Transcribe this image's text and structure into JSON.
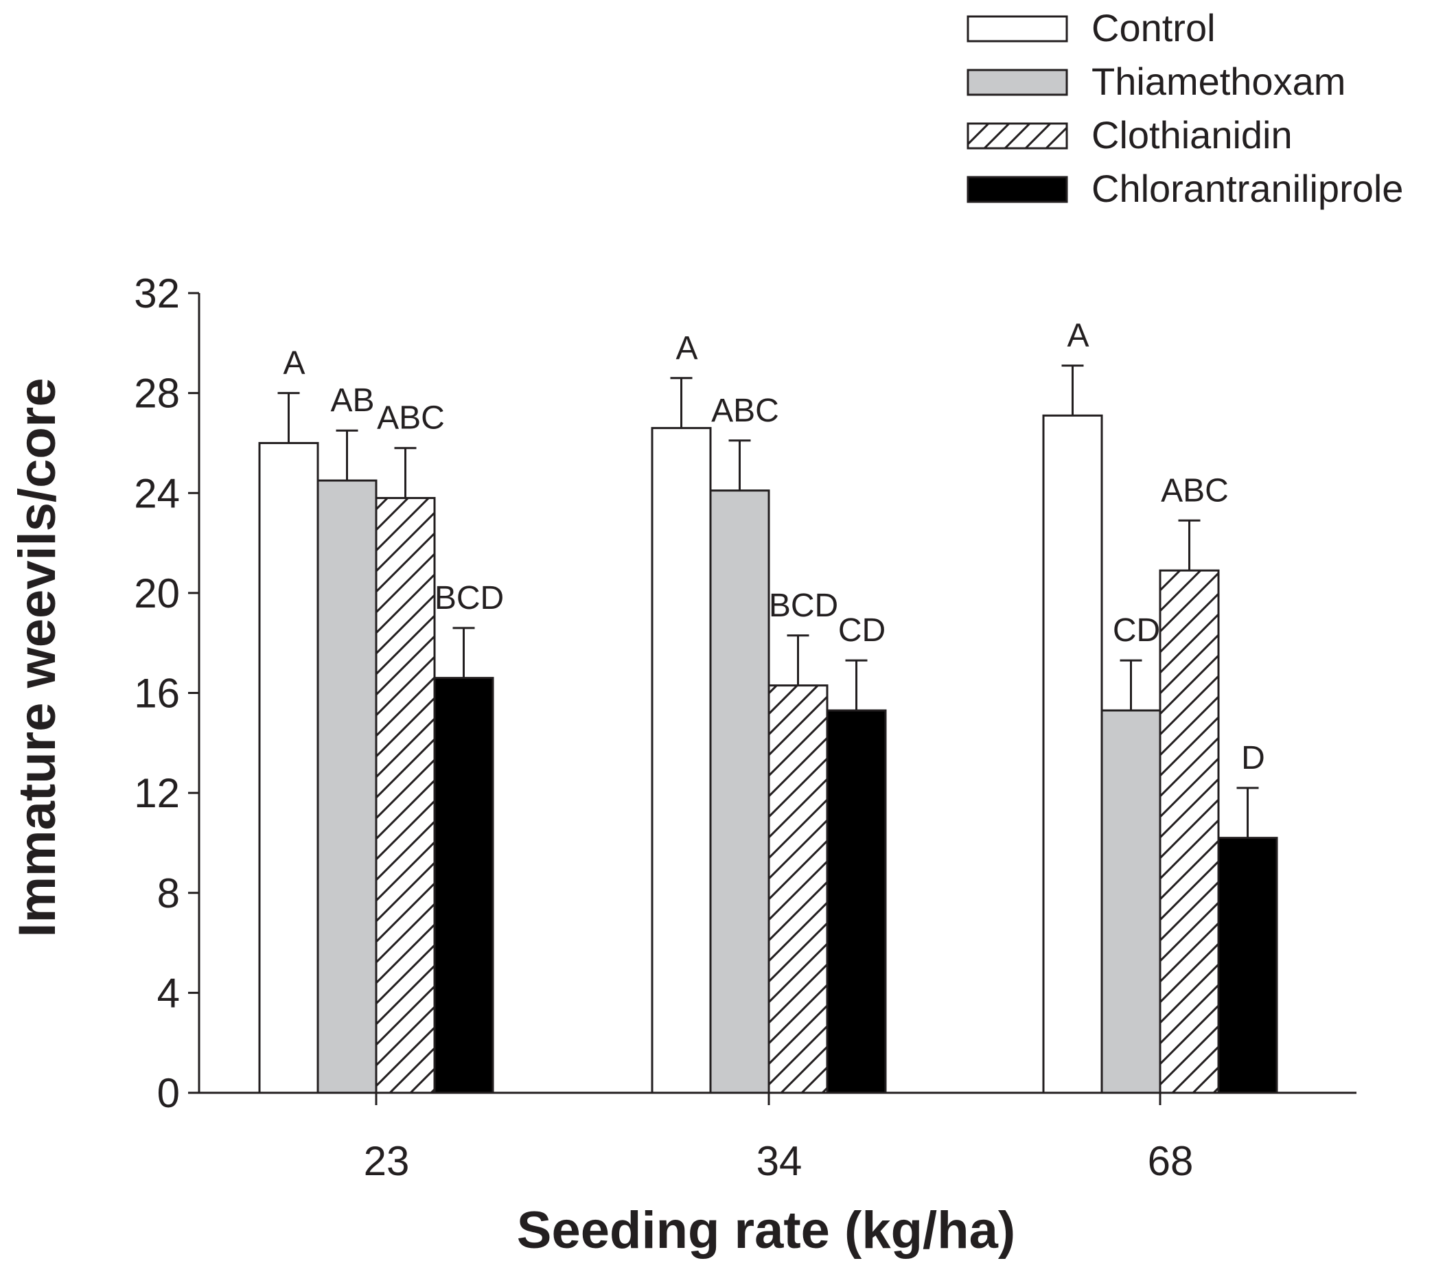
{
  "chart_data": {
    "type": "bar",
    "title": "",
    "xlabel": "Seeding rate (kg/ha)",
    "ylabel": "Immature weevils/core",
    "ylim": [
      0,
      32
    ],
    "yticks": [
      0,
      4,
      8,
      12,
      16,
      20,
      24,
      28,
      32
    ],
    "categories": [
      "23",
      "34",
      "68"
    ],
    "grid": false,
    "legend_position": "top-right",
    "series": [
      {
        "name": "Control",
        "fill": "white",
        "color": "#ffffff",
        "values": [
          26.0,
          26.6,
          27.1
        ],
        "errors": [
          2.0,
          2.0,
          2.0
        ],
        "labels": [
          "A",
          "A",
          "A"
        ]
      },
      {
        "name": "Thiamethoxam",
        "fill": "gray",
        "color": "#c8c9cb",
        "values": [
          24.5,
          24.1,
          15.3
        ],
        "errors": [
          2.0,
          2.0,
          2.0
        ],
        "labels": [
          "AB",
          "ABC",
          "CD"
        ]
      },
      {
        "name": "Clothianidin",
        "fill": "hatch",
        "color": "#ffffff",
        "values": [
          23.8,
          16.3,
          20.9
        ],
        "errors": [
          2.0,
          2.0,
          2.0
        ],
        "labels": [
          "ABC",
          "BCD",
          "ABC"
        ]
      },
      {
        "name": "Chlorantraniliprole",
        "fill": "black",
        "color": "#000000",
        "values": [
          16.6,
          15.3,
          10.2
        ],
        "errors": [
          2.0,
          2.0,
          2.0
        ],
        "labels": [
          "BCD",
          "CD",
          "D"
        ]
      }
    ]
  }
}
